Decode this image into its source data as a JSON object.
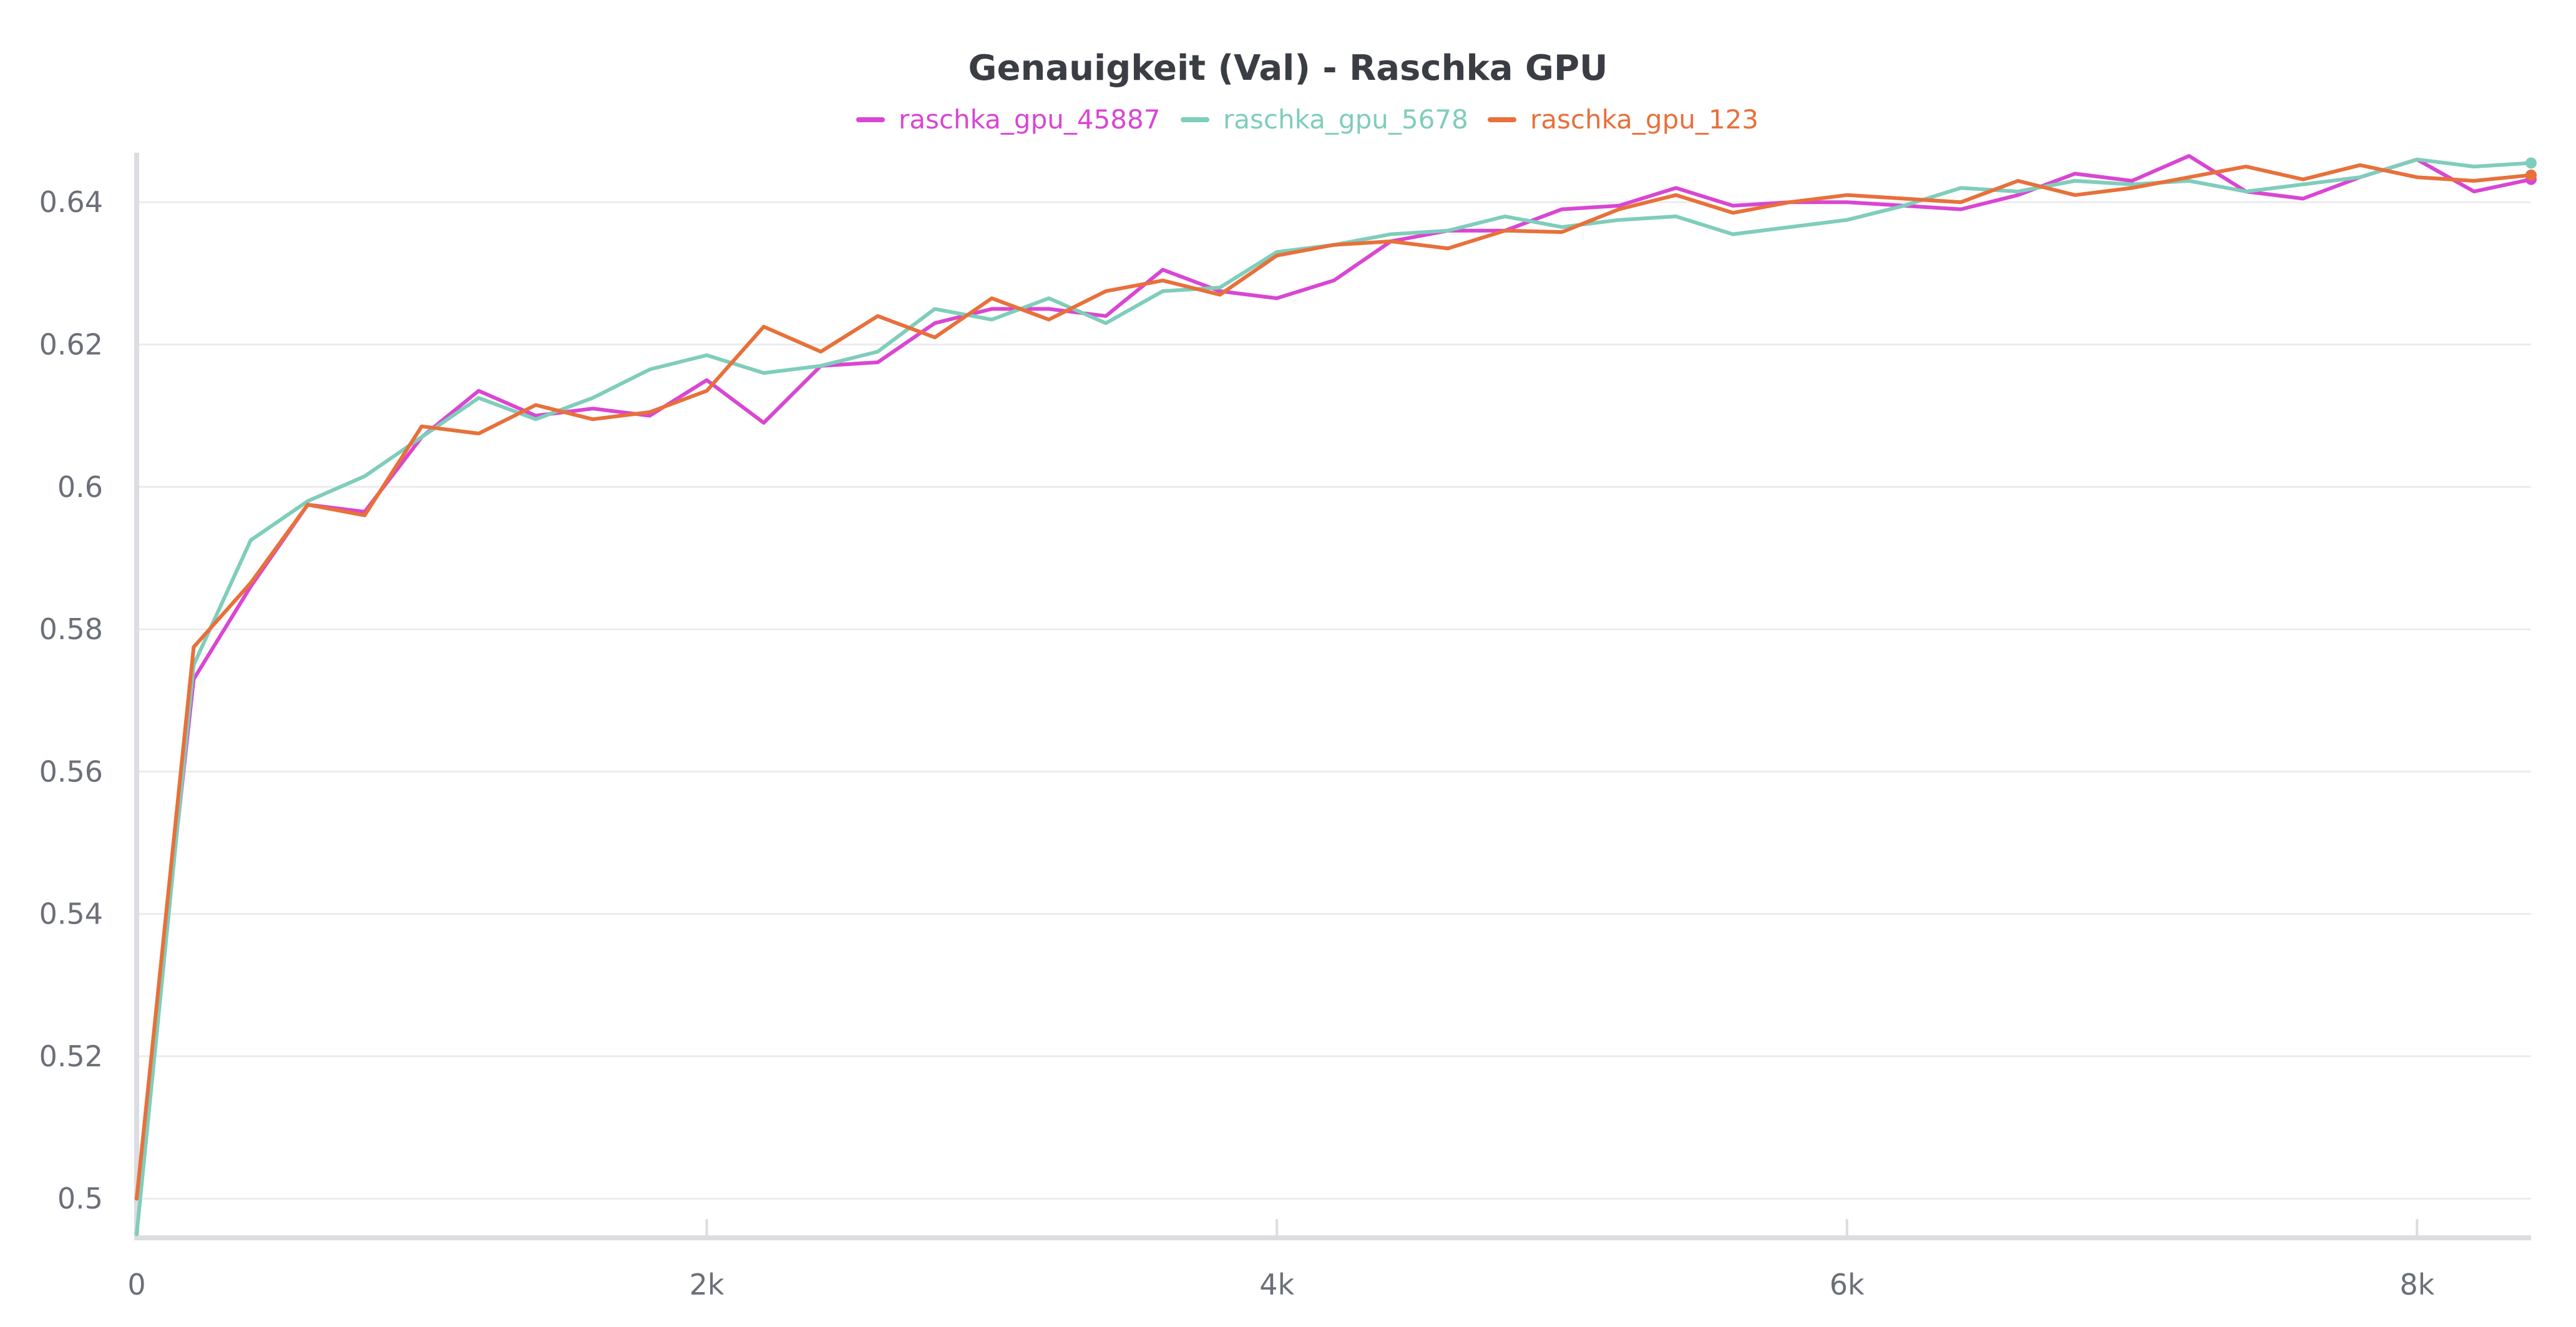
{
  "chart_data": {
    "type": "line",
    "title": "Genauigkeit (Val) - Raschka GPU",
    "xlabel": "",
    "ylabel": "",
    "xlim": [
      0,
      8400
    ],
    "ylim": [
      0.4945,
      0.6465
    ],
    "grid": true,
    "legend_position": "top-center",
    "x_ticks": [
      0,
      2000,
      4000,
      6000,
      8000
    ],
    "x_tick_labels": [
      "0",
      "2k",
      "4k",
      "6k",
      "8k"
    ],
    "y_ticks": [
      0.5,
      0.52,
      0.54,
      0.56,
      0.58,
      0.6,
      0.62,
      0.64
    ],
    "y_tick_labels": [
      "0.5",
      "0.52",
      "0.54",
      "0.56",
      "0.58",
      "0.6",
      "0.62",
      "0.64"
    ],
    "x": [
      0,
      200,
      400,
      600,
      800,
      1000,
      1200,
      1400,
      1600,
      1800,
      2000,
      2200,
      2400,
      2600,
      2800,
      3000,
      3200,
      3400,
      3600,
      3800,
      4000,
      4200,
      4400,
      4600,
      4800,
      5000,
      5200,
      5400,
      5600,
      5800,
      6000,
      6200,
      6400,
      6600,
      6800,
      7000,
      7200,
      7400,
      7600,
      7800,
      8000,
      8200,
      8400
    ],
    "series": [
      {
        "name": "raschka_gpu_45887",
        "color": "#d946d2",
        "values": [
          0.5,
          0.573,
          0.586,
          0.5975,
          0.5965,
          0.607,
          0.6135,
          0.61,
          0.611,
          0.61,
          0.615,
          0.609,
          0.617,
          0.6175,
          0.623,
          0.625,
          0.625,
          0.624,
          0.6305,
          0.6275,
          0.6265,
          0.629,
          0.6345,
          0.636,
          0.636,
          0.639,
          0.6395,
          0.642,
          0.6395,
          0.64,
          0.64,
          0.6395,
          0.639,
          0.641,
          0.644,
          0.643,
          0.6465,
          0.6415,
          0.6405,
          0.6435,
          0.646,
          0.6415,
          0.6432
        ]
      },
      {
        "name": "raschka_gpu_5678",
        "color": "#7fcdbb",
        "values": [
          0.495,
          0.575,
          0.5925,
          0.598,
          0.6015,
          0.607,
          0.6125,
          0.6095,
          0.6125,
          0.6165,
          0.6185,
          0.616,
          0.617,
          0.619,
          0.625,
          0.6235,
          0.6265,
          0.623,
          0.6275,
          0.628,
          0.633,
          0.634,
          0.6355,
          0.636,
          0.638,
          0.6365,
          0.6375,
          0.638,
          0.6355,
          0.6365,
          0.6375,
          0.6395,
          0.642,
          0.6415,
          0.643,
          0.6425,
          0.643,
          0.6415,
          0.6425,
          0.6435,
          0.646,
          0.645,
          0.6455
        ]
      },
      {
        "name": "raschka_gpu_123",
        "color": "#e8703a",
        "values": [
          0.5,
          0.5775,
          0.5865,
          0.5975,
          0.596,
          0.6085,
          0.6075,
          0.6115,
          0.6095,
          0.6105,
          0.6135,
          0.6225,
          0.619,
          0.624,
          0.621,
          0.6265,
          0.6235,
          0.6275,
          0.629,
          0.627,
          0.6325,
          0.634,
          0.6345,
          0.6335,
          0.636,
          0.6358,
          0.639,
          0.641,
          0.6385,
          0.64,
          0.641,
          0.6405,
          0.64,
          0.643,
          0.641,
          0.642,
          0.6435,
          0.645,
          0.6432,
          0.6452,
          0.6435,
          0.643,
          0.6438
        ]
      }
    ]
  }
}
